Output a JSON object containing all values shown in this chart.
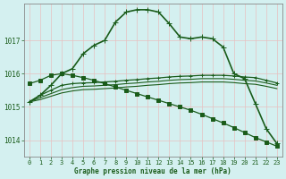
{
  "xlabel": "Graphe pression niveau de la mer (hPa)",
  "background_color": "#d4f0f0",
  "grid_color": "#c0d8d8",
  "line_color": "#1a5c1a",
  "xlim": [
    -0.5,
    23.5
  ],
  "ylim": [
    1013.5,
    1018.1
  ],
  "yticks": [
    1014,
    1015,
    1016,
    1017
  ],
  "xticks": [
    0,
    1,
    2,
    3,
    4,
    5,
    6,
    7,
    8,
    9,
    10,
    11,
    12,
    13,
    14,
    15,
    16,
    17,
    18,
    19,
    20,
    21,
    22,
    23
  ],
  "series": [
    {
      "x": [
        0,
        1,
        2,
        3,
        4,
        5,
        6,
        7,
        8,
        9,
        10,
        11,
        12,
        13,
        14,
        15,
        16,
        17,
        18,
        19,
        20,
        21,
        22,
        23
      ],
      "y": [
        1015.15,
        1015.35,
        1015.65,
        1016.0,
        1016.15,
        1016.6,
        1016.85,
        1017.0,
        1017.55,
        1017.85,
        1017.92,
        1017.92,
        1017.85,
        1017.5,
        1017.1,
        1017.05,
        1017.1,
        1017.05,
        1016.8,
        1016.0,
        1015.85,
        1015.1,
        1014.35,
        1013.9
      ],
      "marker": "+",
      "markersize": 4,
      "lw": 1.2
    },
    {
      "x": [
        0,
        1,
        2,
        3,
        4,
        5,
        6,
        7,
        8,
        9,
        10,
        11,
        12,
        13,
        14,
        15,
        16,
        17,
        18,
        19,
        20,
        21,
        22,
        23
      ],
      "y": [
        1015.15,
        1015.35,
        1015.5,
        1015.65,
        1015.7,
        1015.72,
        1015.73,
        1015.75,
        1015.77,
        1015.8,
        1015.82,
        1015.85,
        1015.87,
        1015.9,
        1015.92,
        1015.93,
        1015.95,
        1015.95,
        1015.95,
        1015.93,
        1015.9,
        1015.88,
        1015.8,
        1015.72
      ],
      "marker": "+",
      "markersize": 3,
      "lw": 0.9
    },
    {
      "x": [
        0,
        1,
        2,
        3,
        4,
        5,
        6,
        7,
        8,
        9,
        10,
        11,
        12,
        13,
        14,
        15,
        16,
        17,
        18,
        19,
        20,
        21,
        22,
        23
      ],
      "y": [
        1015.15,
        1015.28,
        1015.4,
        1015.52,
        1015.58,
        1015.62,
        1015.63,
        1015.65,
        1015.67,
        1015.7,
        1015.72,
        1015.75,
        1015.77,
        1015.8,
        1015.82,
        1015.83,
        1015.85,
        1015.85,
        1015.85,
        1015.83,
        1015.8,
        1015.78,
        1015.72,
        1015.65
      ],
      "marker": null,
      "lw": 0.8
    },
    {
      "x": [
        0,
        1,
        2,
        3,
        4,
        5,
        6,
        7,
        8,
        9,
        10,
        11,
        12,
        13,
        14,
        15,
        16,
        17,
        18,
        19,
        20,
        21,
        22,
        23
      ],
      "y": [
        1015.15,
        1015.22,
        1015.32,
        1015.42,
        1015.48,
        1015.52,
        1015.53,
        1015.55,
        1015.57,
        1015.6,
        1015.62,
        1015.65,
        1015.67,
        1015.7,
        1015.72,
        1015.73,
        1015.75,
        1015.75,
        1015.75,
        1015.73,
        1015.7,
        1015.68,
        1015.62,
        1015.55
      ],
      "marker": null,
      "lw": 0.8
    },
    {
      "x": [
        0,
        1,
        2,
        3,
        4,
        5,
        6,
        7,
        8,
        9,
        10,
        11,
        12,
        13,
        14,
        15,
        16,
        17,
        18,
        19,
        20,
        21,
        22,
        23
      ],
      "y": [
        1015.7,
        1015.8,
        1015.95,
        1016.0,
        1015.95,
        1015.88,
        1015.8,
        1015.7,
        1015.6,
        1015.5,
        1015.4,
        1015.3,
        1015.2,
        1015.1,
        1015.0,
        1014.9,
        1014.78,
        1014.65,
        1014.52,
        1014.38,
        1014.23,
        1014.08,
        1013.95,
        1013.82
      ],
      "marker": "s",
      "markersize": 2.5,
      "lw": 0.9
    }
  ]
}
